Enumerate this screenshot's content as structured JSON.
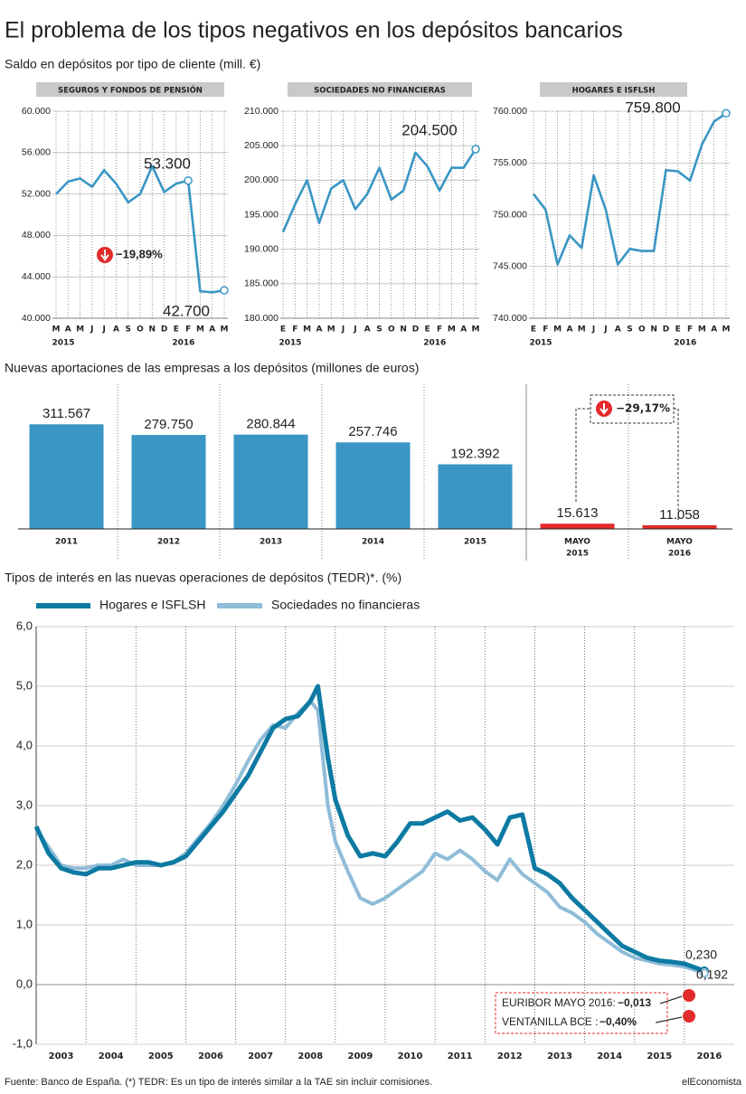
{
  "title": "El problema de los tipos negativos en los depósitos bancarios",
  "subtitle1": "Saldo en depósitos por tipo de cliente (mill. €)",
  "subtitle2": "Nuevas aportaciones de las empresas a los depósitos (millones de euros)",
  "subtitle3": "Tipos de interés en las nuevas operaciones de depósitos (TEDR)*. (%)",
  "source": "Fuente: Banco de España. (*) TEDR: Es un tipo de interés similar a la TAE sin incluir comisiones.",
  "brand": "elEconomista",
  "chart_data": [
    {
      "type": "line",
      "title": "SEGUROS Y FONDOS DE PENSIÓN",
      "color": "#3a96c4",
      "categories": [
        "M",
        "A",
        "M",
        "J",
        "J",
        "A",
        "S",
        "O",
        "N",
        "D",
        "E",
        "F",
        "M",
        "A",
        "M"
      ],
      "values": [
        52000,
        53200,
        53500,
        52700,
        54300,
        53000,
        51200,
        52000,
        54700,
        52200,
        53000,
        53300,
        42600,
        42500,
        42700
      ],
      "year_labels": [
        "2015",
        "2016"
      ],
      "year_index": [
        0,
        10
      ],
      "ylim": [
        40000,
        60000
      ],
      "yticks": [
        {
          "value": 40000,
          "label": "40.000"
        },
        {
          "value": 44000,
          "label": "44.000"
        },
        {
          "value": 48000,
          "label": "48.000"
        },
        {
          "value": 52000,
          "label": "52.000"
        },
        {
          "value": 56000,
          "label": "56.000"
        },
        {
          "value": 60000,
          "label": "60.000"
        }
      ],
      "annotations": [
        "53.300",
        "42.700",
        "−19,89%"
      ]
    },
    {
      "type": "line",
      "title": "SOCIEDADES NO FINANCIERAS",
      "color": "#3a96c4",
      "categories": [
        "E",
        "F",
        "M",
        "A",
        "M",
        "J",
        "J",
        "A",
        "S",
        "O",
        "N",
        "D",
        "E",
        "F",
        "M",
        "A",
        "M"
      ],
      "values": [
        192500,
        196500,
        200000,
        193800,
        198800,
        200000,
        195800,
        198000,
        201800,
        197200,
        198500,
        204000,
        202000,
        198500,
        201800,
        201800,
        204500
      ],
      "year_labels": [
        "2015",
        "2016"
      ],
      "year_index": [
        0,
        12
      ],
      "ylim": [
        180000,
        210000
      ],
      "yticks": [
        {
          "value": 180000,
          "label": "180.000"
        },
        {
          "value": 185000,
          "label": "185.000"
        },
        {
          "value": 190000,
          "label": "190.000"
        },
        {
          "value": 195000,
          "label": "195.000"
        },
        {
          "value": 200000,
          "label": "200.000"
        },
        {
          "value": 205000,
          "label": "205.000"
        },
        {
          "value": 210000,
          "label": "210.000"
        }
      ],
      "annotations": [
        "204.500"
      ]
    },
    {
      "type": "line",
      "title": "HOGARES E ISFLSH",
      "color": "#3a96c4",
      "categories": [
        "E",
        "F",
        "M",
        "A",
        "M",
        "J",
        "J",
        "A",
        "S",
        "O",
        "N",
        "D",
        "E",
        "F",
        "M",
        "A",
        "M"
      ],
      "values": [
        752000,
        750500,
        745200,
        748000,
        746800,
        753800,
        750500,
        745200,
        746700,
        746500,
        746500,
        754300,
        754200,
        753300,
        756800,
        759000,
        759800
      ],
      "year_labels": [
        "2015",
        "2016"
      ],
      "year_index": [
        0,
        12
      ],
      "ylim": [
        740000,
        760000
      ],
      "yticks": [
        {
          "value": 740000,
          "label": "740.000"
        },
        {
          "value": 745000,
          "label": "745.000"
        },
        {
          "value": 750000,
          "label": "750.000"
        },
        {
          "value": 755000,
          "label": "755.000"
        },
        {
          "value": 760000,
          "label": "760.000"
        }
      ],
      "annotations": [
        "759.800"
      ]
    },
    {
      "type": "bar",
      "categories": [
        "2011",
        "2012",
        "2013",
        "2014",
        "2015",
        [
          "MAYO",
          "2015"
        ],
        [
          "MAYO",
          "2016"
        ]
      ],
      "values": [
        311567,
        279750,
        280844,
        257746,
        192392,
        15613,
        11058
      ],
      "value_labels": [
        "311.567",
        "279.750",
        "280.844",
        "257.746",
        "192.392",
        "15.613",
        "11.058"
      ],
      "colors": [
        "#3a96c4",
        "#3a96c4",
        "#3a96c4",
        "#3a96c4",
        "#3a96c4",
        "#e32b2b",
        "#e32b2b"
      ],
      "ylim": [
        0,
        350000
      ],
      "annotations": [
        "−29,17%"
      ]
    },
    {
      "type": "line",
      "x": [
        2003,
        2003.25,
        2003.5,
        2003.75,
        2004,
        2004.25,
        2004.5,
        2004.75,
        2005,
        2005.25,
        2005.5,
        2005.75,
        2006,
        2006.25,
        2006.5,
        2006.75,
        2007,
        2007.25,
        2007.5,
        2007.75,
        2008,
        2008.25,
        2008.5,
        2008.65,
        2008.85,
        2009,
        2009.25,
        2009.5,
        2009.75,
        2010,
        2010.25,
        2010.5,
        2010.75,
        2011,
        2011.25,
        2011.5,
        2011.75,
        2012,
        2012.25,
        2012.5,
        2012.75,
        2013,
        2013.25,
        2013.5,
        2013.75,
        2014,
        2014.25,
        2014.5,
        2014.75,
        2015,
        2015.25,
        2015.5,
        2015.75,
        2016,
        2016.4
      ],
      "series": [
        {
          "name": "Hogares e ISFLSH",
          "color": "#0d7aa3",
          "values": [
            2.65,
            2.2,
            1.95,
            1.88,
            1.85,
            1.95,
            1.95,
            2.0,
            2.05,
            2.05,
            2.0,
            2.05,
            2.15,
            2.4,
            2.65,
            2.9,
            3.2,
            3.5,
            3.9,
            4.3,
            4.45,
            4.5,
            4.75,
            5.0,
            3.8,
            3.1,
            2.5,
            2.15,
            2.2,
            2.15,
            2.4,
            2.7,
            2.7,
            2.8,
            2.9,
            2.75,
            2.8,
            2.6,
            2.35,
            2.8,
            2.85,
            1.95,
            1.85,
            1.7,
            1.45,
            1.25,
            1.05,
            0.85,
            0.65,
            0.55,
            0.45,
            0.4,
            0.38,
            0.35,
            0.23
          ]
        },
        {
          "name": "Sociedades no financieras",
          "color": "#8fbcd8",
          "values": [
            2.6,
            2.3,
            2.0,
            1.95,
            1.95,
            2.0,
            2.0,
            2.1,
            2.0,
            2.0,
            2.0,
            2.05,
            2.2,
            2.45,
            2.7,
            3.0,
            3.35,
            3.75,
            4.1,
            4.35,
            4.3,
            4.55,
            4.75,
            4.6,
            3.0,
            2.4,
            1.9,
            1.45,
            1.35,
            1.45,
            1.6,
            1.75,
            1.9,
            2.2,
            2.1,
            2.25,
            2.1,
            1.9,
            1.75,
            2.1,
            1.85,
            1.7,
            1.55,
            1.3,
            1.2,
            1.05,
            0.85,
            0.7,
            0.55,
            0.45,
            0.4,
            0.35,
            0.33,
            0.3,
            0.192
          ]
        }
      ],
      "xlim": [
        2003,
        2017
      ],
      "xticks": [
        {
          "value": 2003.5,
          "label": "2003"
        },
        {
          "value": 2004.5,
          "label": "2004"
        },
        {
          "value": 2005.5,
          "label": "2005"
        },
        {
          "value": 2006.5,
          "label": "2006"
        },
        {
          "value": 2007.5,
          "label": "2007"
        },
        {
          "value": 2008.5,
          "label": "2008"
        },
        {
          "value": 2009.5,
          "label": "2009"
        },
        {
          "value": 2010.5,
          "label": "2010"
        },
        {
          "value": 2011.5,
          "label": "2011"
        },
        {
          "value": 2012.5,
          "label": "2012"
        },
        {
          "value": 2013.5,
          "label": "2013"
        },
        {
          "value": 2014.5,
          "label": "2014"
        },
        {
          "value": 2015.5,
          "label": "2015"
        },
        {
          "value": 2016.5,
          "label": "2016"
        }
      ],
      "xgrid": [
        2004,
        2005,
        2006,
        2007,
        2008,
        2009,
        2010,
        2011,
        2012,
        2013,
        2014,
        2015,
        2016
      ],
      "ylim": [
        -1,
        6
      ],
      "yticks": [
        {
          "value": -1,
          "label": "-1,0"
        },
        {
          "value": 0,
          "label": "0,0"
        },
        {
          "value": 1,
          "label": "1,0"
        },
        {
          "value": 2,
          "label": "2,0"
        },
        {
          "value": 3,
          "label": "3,0"
        },
        {
          "value": 4,
          "label": "4,0"
        },
        {
          "value": 5,
          "label": "5,0"
        },
        {
          "value": 6,
          "label": "6,0"
        }
      ],
      "annotations": [
        "0,230",
        "0,192",
        "EURIBOR MAYO 2016:",
        "−0,013",
        "VENTANILLA BCE :",
        "−0,40%"
      ]
    }
  ]
}
